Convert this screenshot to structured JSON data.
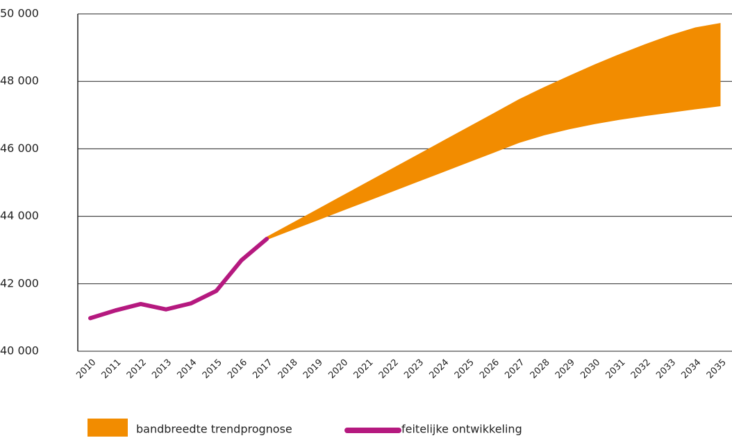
{
  "chart_data": {
    "type": "band-line",
    "categories": [
      "2010",
      "2011",
      "2012",
      "2013",
      "2014",
      "2015",
      "2016",
      "2017",
      "2018",
      "2019",
      "2020",
      "2021",
      "2022",
      "2023",
      "2024",
      "2025",
      "2026",
      "2027",
      "2028",
      "2029",
      "2030",
      "2031",
      "2032",
      "2033",
      "2034",
      "2035"
    ],
    "series": [
      {
        "name": "bandbreedte trendprognose",
        "color": "#f28c00",
        "high": [
          null,
          null,
          null,
          null,
          null,
          null,
          null,
          43395,
          43802,
          44209,
          44616,
          45023,
          45430,
          45837,
          46244,
          46651,
          47058,
          47469,
          47830,
          48170,
          48500,
          48810,
          49100,
          49370,
          49600,
          49730
        ],
        "low": [
          null,
          null,
          null,
          null,
          null,
          null,
          null,
          43300,
          43587,
          43874,
          44161,
          44448,
          44735,
          45022,
          45309,
          45596,
          45883,
          46173,
          46400,
          46580,
          46730,
          46860,
          46970,
          47070,
          47170,
          47263
        ]
      },
      {
        "name": "feitelijke ontwikkeling",
        "color": "#b5197f",
        "values": [
          40980,
          41210,
          41400,
          41240,
          41420,
          41790,
          42700,
          43330,
          null,
          null,
          null,
          null,
          null,
          null,
          null,
          null,
          null,
          null,
          null,
          null,
          null,
          null,
          null,
          null,
          null,
          null
        ]
      }
    ],
    "ylim": [
      40000,
      50000
    ],
    "yticks": [
      {
        "value": 40000,
        "label": "40 000"
      },
      {
        "value": 42000,
        "label": "42 000"
      },
      {
        "value": 44000,
        "label": "44 000"
      },
      {
        "value": 46000,
        "label": "46 000"
      },
      {
        "value": 48000,
        "label": "48 000"
      },
      {
        "value": 50000,
        "label": "50 000"
      }
    ],
    "grid": true,
    "legend": "bottom"
  }
}
